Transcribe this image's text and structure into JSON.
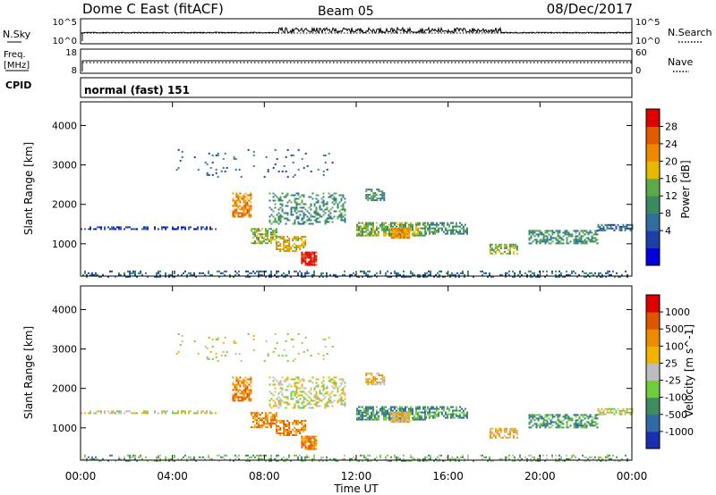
{
  "header": {
    "title": "Dome C East (fitACF)",
    "beam": "Beam 05",
    "date": "08/Dec/2017"
  },
  "status_panels": {
    "nsky_label": "N.Sky",
    "nsky_ticks": [
      "10^5",
      "10^0"
    ],
    "nsearch_label": "N.Search",
    "freq_label": "Freq.",
    "freq_unit": "[MHz]",
    "freq_ticks": [
      "18",
      "8"
    ],
    "nave_label": "Nave",
    "nave_ticks": [
      "60",
      "0"
    ],
    "cpid_label": "CPID",
    "cpid_value": "normal (fast) 151"
  },
  "colorbars": {
    "power": {
      "label": "Power [dB]",
      "ticks": [
        "28",
        "24",
        "20",
        "16",
        "12",
        "8",
        "4"
      ],
      "colors": [
        "#0000dd",
        "#1e3fa8",
        "#2f6fa0",
        "#3a8a60",
        "#5aaa4a",
        "#e6b800",
        "#ee8800",
        "#e05a00",
        "#dd0000"
      ]
    },
    "velocity": {
      "label": "Velocity [m s^-1]",
      "ticks": [
        "1000",
        "500",
        "100",
        "25",
        "-25",
        "-100",
        "-500",
        "-1000"
      ],
      "colors": [
        "#1a2fb0",
        "#2e6aa5",
        "#3f8d5f",
        "#6fcc3a",
        "#bdbdbd",
        "#f0b400",
        "#ee8c00",
        "#e05500",
        "#dd0000"
      ]
    }
  },
  "chart_data": [
    {
      "type": "heatmap",
      "name": "power",
      "ylabel": "Slant Range [km]",
      "ylim": [
        180,
        4600
      ],
      "yticks": [
        "4000",
        "3000",
        "2000",
        "1000"
      ],
      "xlim": [
        0,
        24
      ],
      "xticks": [
        "00:00",
        "04:00",
        "08:00",
        "12:00",
        "16:00",
        "20:00",
        "00:00"
      ],
      "regions": [
        {
          "t0": 0.0,
          "t1": 5.9,
          "r0": 1380,
          "r1": 1440,
          "density": 0.5,
          "level": 1
        },
        {
          "t0": 0.0,
          "t1": 24.0,
          "r0": 180,
          "r1": 320,
          "density": 0.3,
          "level": 2
        },
        {
          "t0": 6.6,
          "t1": 7.4,
          "r0": 1700,
          "r1": 2300,
          "density": 0.6,
          "level": 6
        },
        {
          "t0": 7.4,
          "t1": 8.5,
          "r0": 1000,
          "r1": 1400,
          "density": 0.7,
          "level": 4
        },
        {
          "t0": 8.5,
          "t1": 9.8,
          "r0": 800,
          "r1": 1200,
          "density": 0.6,
          "level": 5
        },
        {
          "t0": 9.6,
          "t1": 10.3,
          "r0": 450,
          "r1": 800,
          "density": 0.9,
          "level": 8
        },
        {
          "t0": 8.2,
          "t1": 11.5,
          "r0": 1500,
          "r1": 2300,
          "density": 0.35,
          "level": 3
        },
        {
          "t0": 12.0,
          "t1": 15.0,
          "r0": 1200,
          "r1": 1550,
          "density": 0.7,
          "level": 4
        },
        {
          "t0": 13.5,
          "t1": 14.3,
          "r0": 1150,
          "r1": 1400,
          "density": 0.9,
          "level": 6
        },
        {
          "t0": 15.0,
          "t1": 16.8,
          "r0": 1250,
          "r1": 1550,
          "density": 0.6,
          "level": 3
        },
        {
          "t0": 12.4,
          "t1": 13.2,
          "r0": 2100,
          "r1": 2400,
          "density": 0.6,
          "level": 3
        },
        {
          "t0": 17.8,
          "t1": 19.0,
          "r0": 750,
          "r1": 1000,
          "density": 0.6,
          "level": 4
        },
        {
          "t0": 19.5,
          "t1": 22.5,
          "r0": 1000,
          "r1": 1350,
          "density": 0.6,
          "level": 3
        },
        {
          "t0": 22.5,
          "t1": 24.0,
          "r0": 1350,
          "r1": 1500,
          "density": 0.5,
          "level": 2
        },
        {
          "t0": 4.0,
          "t1": 11.0,
          "r0": 2700,
          "r1": 3400,
          "density": 0.05,
          "level": 2
        }
      ]
    },
    {
      "type": "heatmap",
      "name": "velocity",
      "ylabel": "Slant Range [km]",
      "ylim": [
        180,
        4600
      ],
      "yticks": [
        "4000",
        "3000",
        "2000",
        "1000"
      ],
      "xlim": [
        0,
        24
      ],
      "xticks": [
        "00:00",
        "04:00",
        "08:00",
        "12:00",
        "16:00",
        "20:00",
        "00:00"
      ],
      "xlabel": "Time UT",
      "regions": [
        {
          "t0": 0.0,
          "t1": 5.9,
          "r0": 1380,
          "r1": 1440,
          "density": 0.5,
          "level": 4
        },
        {
          "t0": 0.0,
          "t1": 24.0,
          "r0": 180,
          "r1": 320,
          "density": 0.3,
          "level": 3
        },
        {
          "t0": 6.6,
          "t1": 7.4,
          "r0": 1700,
          "r1": 2300,
          "density": 0.6,
          "level": 6
        },
        {
          "t0": 7.4,
          "t1": 8.5,
          "r0": 1000,
          "r1": 1400,
          "density": 0.7,
          "level": 6
        },
        {
          "t0": 8.5,
          "t1": 9.8,
          "r0": 800,
          "r1": 1200,
          "density": 0.6,
          "level": 6
        },
        {
          "t0": 9.6,
          "t1": 10.3,
          "r0": 450,
          "r1": 800,
          "density": 0.9,
          "level": 6
        },
        {
          "t0": 8.2,
          "t1": 11.5,
          "r0": 1500,
          "r1": 2300,
          "density": 0.35,
          "level": 4
        },
        {
          "t0": 12.0,
          "t1": 15.0,
          "r0": 1200,
          "r1": 1550,
          "density": 0.7,
          "level": 2
        },
        {
          "t0": 13.5,
          "t1": 14.3,
          "r0": 1150,
          "r1": 1400,
          "density": 0.9,
          "level": 5
        },
        {
          "t0": 15.0,
          "t1": 16.8,
          "r0": 1250,
          "r1": 1550,
          "density": 0.6,
          "level": 2
        },
        {
          "t0": 12.4,
          "t1": 13.2,
          "r0": 2100,
          "r1": 2400,
          "density": 0.6,
          "level": 5
        },
        {
          "t0": 17.8,
          "t1": 19.0,
          "r0": 750,
          "r1": 1000,
          "density": 0.6,
          "level": 5
        },
        {
          "t0": 19.5,
          "t1": 22.5,
          "r0": 1000,
          "r1": 1350,
          "density": 0.6,
          "level": 2
        },
        {
          "t0": 22.5,
          "t1": 24.0,
          "r0": 1350,
          "r1": 1500,
          "density": 0.5,
          "level": 4
        },
        {
          "t0": 4.0,
          "t1": 11.0,
          "r0": 2700,
          "r1": 3400,
          "density": 0.05,
          "level": 4
        }
      ]
    }
  ]
}
